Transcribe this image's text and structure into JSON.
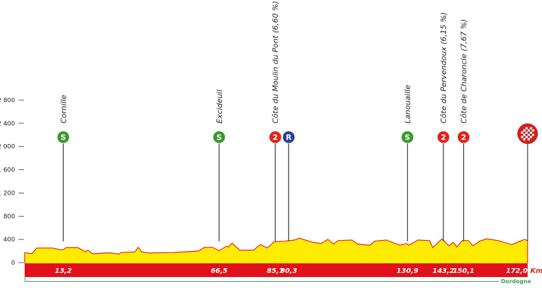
{
  "chart_data": {
    "type": "area",
    "xlabel": "Km",
    "ylim": [
      0,
      2800
    ],
    "xlim": [
      0,
      172.0
    ],
    "yticks": [
      0,
      400,
      800,
      1200,
      1600,
      2000,
      2400,
      2800
    ],
    "ytick_labels": [
      "0",
      "400",
      "800",
      "1 200",
      "1 600",
      "2 000",
      "2 400",
      "2 800"
    ],
    "grid": false,
    "profile": [
      [
        0,
        174
      ],
      [
        2.5,
        154
      ],
      [
        4.1,
        252
      ],
      [
        9.5,
        252
      ],
      [
        11.9,
        225
      ],
      [
        13.2,
        222
      ],
      [
        14.2,
        260
      ],
      [
        18.1,
        260
      ],
      [
        20.9,
        185
      ],
      [
        21.6,
        217
      ],
      [
        23.2,
        154
      ],
      [
        29.1,
        170
      ],
      [
        32.2,
        146
      ],
      [
        33,
        174
      ],
      [
        37.7,
        185
      ],
      [
        38.8,
        264
      ],
      [
        40,
        185
      ],
      [
        42.3,
        166
      ],
      [
        50.9,
        174
      ],
      [
        59.5,
        201
      ],
      [
        61.5,
        264
      ],
      [
        64.2,
        264
      ],
      [
        66.5,
        205
      ],
      [
        68.9,
        280
      ],
      [
        69.7,
        270
      ],
      [
        70.9,
        335
      ],
      [
        73.6,
        213
      ],
      [
        78.3,
        217
      ],
      [
        80.6,
        311
      ],
      [
        83,
        252
      ],
      [
        85.3,
        358
      ],
      [
        89,
        370
      ],
      [
        92.3,
        390
      ],
      [
        93.9,
        420
      ],
      [
        98.6,
        350
      ],
      [
        101.3,
        330
      ],
      [
        103.7,
        400
      ],
      [
        105.6,
        320
      ],
      [
        107.2,
        380
      ],
      [
        111.9,
        390
      ],
      [
        113.8,
        320
      ],
      [
        118.1,
        300
      ],
      [
        119.7,
        370
      ],
      [
        123.6,
        390
      ],
      [
        128.3,
        300
      ],
      [
        130.6,
        330
      ],
      [
        131.4,
        300
      ],
      [
        134.5,
        390
      ],
      [
        138.4,
        380
      ],
      [
        139.6,
        260
      ],
      [
        142.7,
        410
      ],
      [
        145.1,
        290
      ],
      [
        146.6,
        350
      ],
      [
        147.8,
        270
      ],
      [
        149.7,
        380
      ],
      [
        151.7,
        380
      ],
      [
        153.3,
        290
      ],
      [
        155.6,
        370
      ],
      [
        158,
        410
      ],
      [
        161.9,
        380
      ],
      [
        166.6,
        310
      ],
      [
        170.9,
        400
      ],
      [
        172,
        380
      ]
    ],
    "points": [
      {
        "km": "13,2",
        "km_value": 13.2,
        "name": "Cornille",
        "marker": "S",
        "color": "#3a9a2e"
      },
      {
        "km": "66,5",
        "km_value": 66.5,
        "name": "Excideuil",
        "marker": "S",
        "color": "#3a9a2e"
      },
      {
        "km": "85,7",
        "km_value": 85.7,
        "name": "Côte du Moulin du Pont (6,60 %)",
        "marker": "2",
        "color": "#e2231a"
      },
      {
        "km": "90,3",
        "km_value": 90.3,
        "name": "",
        "marker": "R",
        "color": "#2e3f9a"
      },
      {
        "km": "130,9",
        "km_value": 130.9,
        "name": "Lanouaille",
        "marker": "S",
        "color": "#3a9a2e"
      },
      {
        "km": "143,2",
        "km_value": 143.2,
        "name": "Côte du Pervendoux (6,15 %)",
        "marker": "2",
        "color": "#e2231a"
      },
      {
        "km": "150,1",
        "km_value": 150.1,
        "name": "Côte de Charoncle (7,67 %)",
        "marker": "2",
        "color": "#e2231a"
      },
      {
        "km": "172,0",
        "km_value": 172.0,
        "name": "",
        "marker": "finish",
        "color": "#d21f1f"
      }
    ],
    "region": "Dordogne",
    "colors": {
      "fill": "#ffec00",
      "outline": "#e2231a",
      "band": "#e2101a",
      "region": "#3aa55a"
    }
  }
}
